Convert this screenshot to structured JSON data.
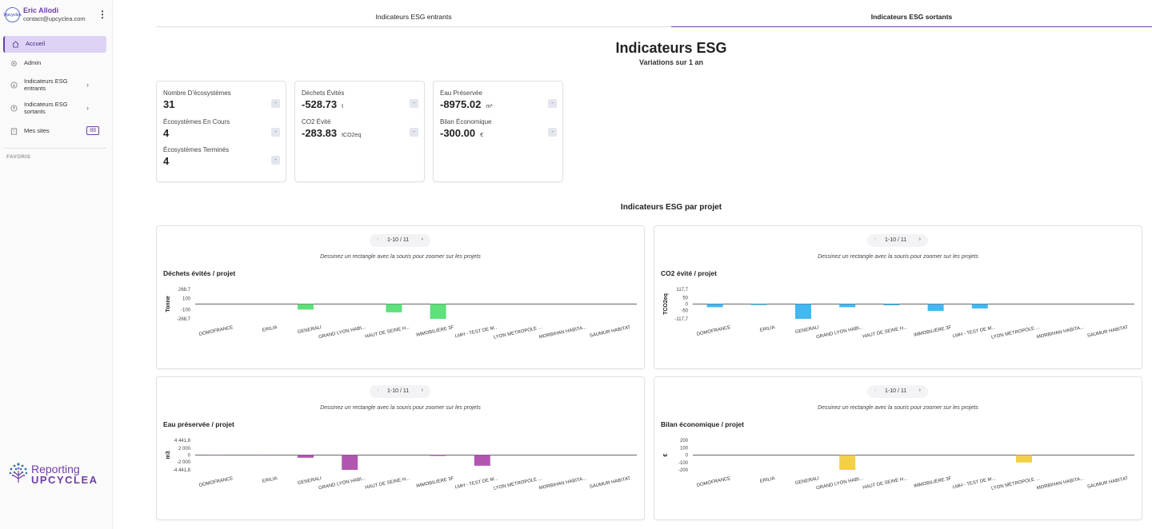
{
  "user": {
    "name": "Eric Allodi",
    "email": "contact@upcyclea.com",
    "avatar_text": "Upcyclea"
  },
  "sidebar": {
    "items": [
      {
        "label": "Accueil",
        "icon": "home-icon",
        "active": true
      },
      {
        "label": "Admin",
        "icon": "gear-icon"
      },
      {
        "label": "Indicateurs ESG entrants",
        "icon": "circle-icon",
        "chevron": true
      },
      {
        "label": "Indicateurs ESG sortants",
        "icon": "circle-icon",
        "chevron": true
      },
      {
        "label": "Mes sites",
        "icon": "building-icon",
        "badge": "88"
      }
    ],
    "favoris_label": "FAVORIS"
  },
  "logo": {
    "line1": "Reporting",
    "line2": "UPCYCLEA"
  },
  "tabs": [
    {
      "label": "Indicateurs ESG entrants",
      "active": false
    },
    {
      "label": "Indicateurs ESG sortants",
      "active": true
    }
  ],
  "page": {
    "title": "Indicateurs ESG",
    "subtitle": "Variations sur 1 an"
  },
  "kpi_cards": [
    {
      "items": [
        {
          "label": "Nombre D'écosystèmes",
          "value": "31",
          "unit": "",
          "badge": "-"
        },
        {
          "label": "Écosystèmes En Cours",
          "value": "4",
          "unit": "",
          "badge": "-"
        },
        {
          "label": "Écosystèmes Terminés",
          "value": "4",
          "unit": "",
          "badge": "-"
        }
      ]
    },
    {
      "items": [
        {
          "label": "Déchets Évités",
          "value": "-528.73",
          "unit": "t",
          "badge": "-"
        },
        {
          "label": "CO2 Évité",
          "value": "-283.83",
          "unit": "tCO2eq",
          "badge": "-"
        }
      ]
    },
    {
      "items": [
        {
          "label": "Eau Préservée",
          "value": "-8975.02",
          "unit": "m³",
          "badge": "-"
        },
        {
          "label": "Bilan Économique",
          "value": "-300.00",
          "unit": "€",
          "badge": "-"
        }
      ]
    }
  ],
  "section_title": "Indicateurs ESG par projet",
  "pager_label": "1-10 / 11",
  "hint": "Dessinez un rectangle avec la souris pour zoomer sur les projets",
  "chart_data": [
    {
      "type": "bar",
      "title": "Déchets évités / projet",
      "ylabel": "Tonne",
      "color": "#5ee07a",
      "ylim": [
        -268.7,
        268.7
      ],
      "yticks": [
        268.7,
        100,
        -100,
        -268.7
      ],
      "ytick_labels": [
        "268,7",
        "100",
        "-100",
        "-268,7"
      ],
      "categories": [
        "DOMOFRANCE",
        "ERILIA",
        "GENERALI",
        "GRAND LYON HABI...",
        "HAUT DE SEINE H...",
        "IMMOBILIÈRE 3F",
        "LMH - TEST DE M...",
        "LYON METROPOLE ...",
        "MORBIHAN HABITA...",
        "SAUMUR HABITAT"
      ],
      "values": [
        0,
        0,
        -100,
        0,
        -150,
        -268.7,
        0,
        0,
        0,
        0
      ]
    },
    {
      "type": "bar",
      "title": "CO2 évité / projet",
      "ylabel": "TCO2eq",
      "color": "#41b8f2",
      "ylim": [
        -117.7,
        117.7
      ],
      "yticks": [
        117.7,
        50,
        0,
        -50,
        -117.7
      ],
      "ytick_labels": [
        "117,7",
        "50",
        "0",
        "-50",
        "-117,7"
      ],
      "categories": [
        "DOMOFRANCE",
        "ERILIA",
        "GENERALI",
        "GRAND LYON HABI...",
        "HAUT DE SEINE H...",
        "IMMOBILIÈRE 3F",
        "LMH - TEST DE M...",
        "LYON METROPOLE ...",
        "MORBIHAN HABITA...",
        "SAUMUR HABITAT"
      ],
      "values": [
        -25,
        -8,
        -117.7,
        -25,
        -10,
        -55,
        -35,
        0,
        0,
        0
      ]
    },
    {
      "type": "bar",
      "title": "Eau préservée / projet",
      "ylabel": "m3",
      "color": "#b056b0",
      "ylim": [
        -4441.8,
        4441.8
      ],
      "yticks": [
        4441.8,
        2000,
        0,
        -2000,
        -4441.8
      ],
      "ytick_labels": [
        "4 441,8",
        "2 000",
        "0",
        "-2 000",
        "-4 441,8"
      ],
      "categories": [
        "DOMOFRANCE",
        "ERILIA",
        "GENERALI",
        "GRAND LYON HABI...",
        "HAUT DE SEINE H...",
        "IMMOBILIÈRE 3F",
        "LMH - TEST DE M...",
        "LYON METROPOLE ...",
        "MORBIHAN HABITA...",
        "SAUMUR HABITAT"
      ],
      "values": [
        -100,
        -60,
        -800,
        -4441.8,
        0,
        -250,
        -3200,
        0,
        0,
        0
      ]
    },
    {
      "type": "bar",
      "title": "Bilan économique / projet",
      "ylabel": "€",
      "color": "#f4cf4a",
      "ylim": [
        -200,
        200
      ],
      "yticks": [
        200,
        100,
        0,
        -100,
        -200
      ],
      "ytick_labels": [
        "200",
        "100",
        "0",
        "-100",
        "-200"
      ],
      "categories": [
        "DOMOFRANCE",
        "ERILIA",
        "GENERALI",
        "GRAND LYON HABI...",
        "HAUT DE SEINE H...",
        "IMMOBILIÈRE 3F",
        "LMH - TEST DE M...",
        "LYON METROPOLE ...",
        "MORBIHAN HABITA...",
        "SAUMUR HABITAT"
      ],
      "values": [
        0,
        0,
        0,
        -200,
        0,
        0,
        0,
        -100,
        0,
        0
      ]
    }
  ]
}
